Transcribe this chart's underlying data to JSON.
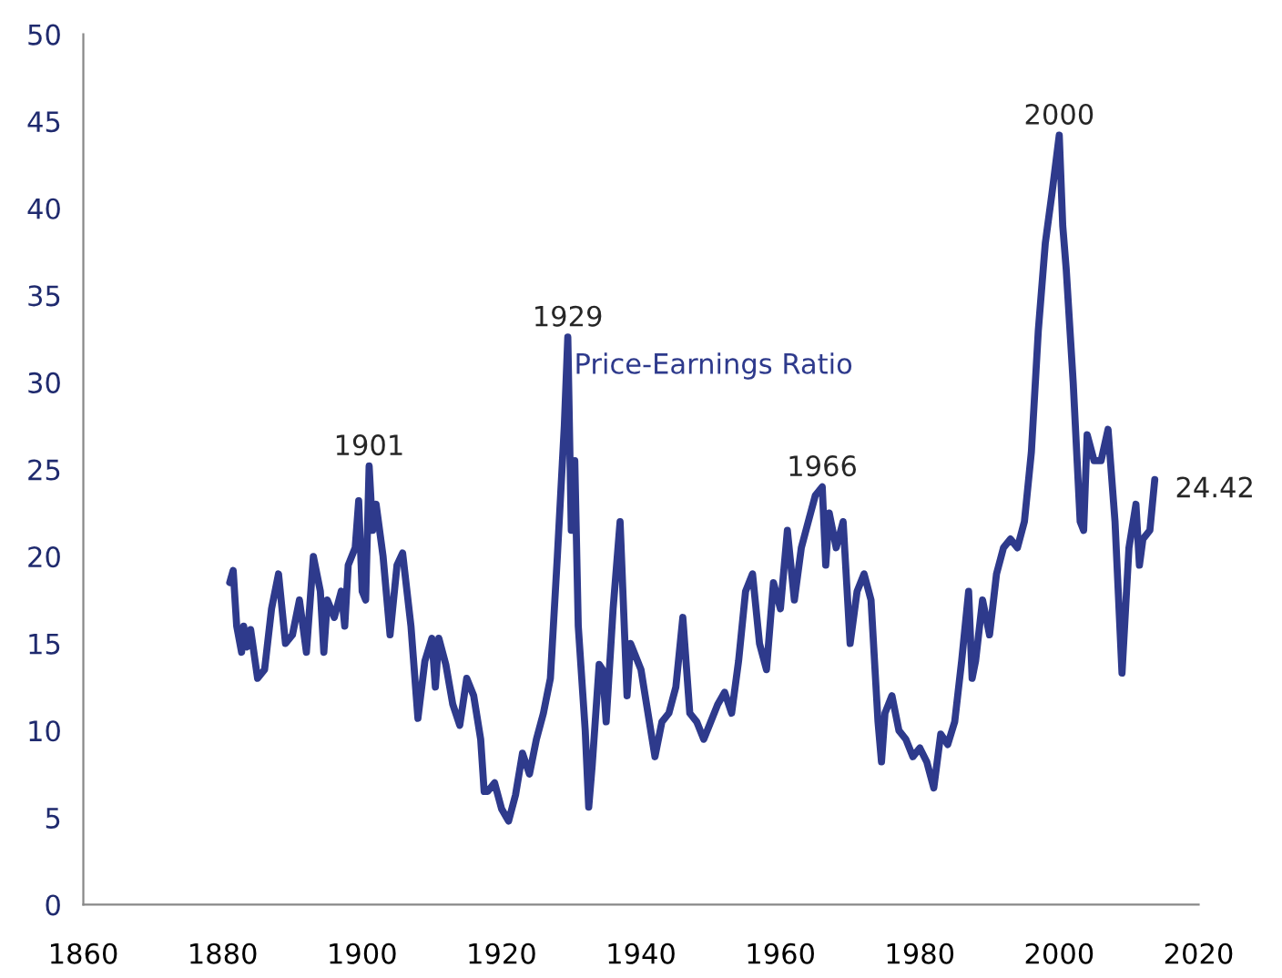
{
  "chart_data": {
    "type": "line",
    "xlim": [
      1860,
      2020
    ],
    "xticks": [
      1860,
      1880,
      1900,
      1920,
      1940,
      1960,
      1980,
      2000,
      2020
    ],
    "ylim": [
      0,
      50
    ],
    "yticks": [
      0,
      5,
      10,
      15,
      20,
      25,
      30,
      35,
      40,
      45,
      50
    ],
    "grid": false,
    "legend": false,
    "marker": "none",
    "line_style": "solid",
    "series": [
      {
        "name": "Price-Earnings Ratio",
        "color": "#2e3a8c",
        "x": [
          1881,
          1881.5,
          1882,
          1882.7,
          1883,
          1883.5,
          1884,
          1885,
          1886,
          1887,
          1888,
          1889,
          1890,
          1891,
          1892,
          1893,
          1894,
          1894.5,
          1895,
          1896,
          1897,
          1897.5,
          1898,
          1899,
          1899.5,
          1900,
          1900.5,
          1901,
          1901.5,
          1902,
          1903,
          1904,
          1905,
          1905.8,
          1907,
          1908,
          1909,
          1910,
          1910.5,
          1911,
          1912,
          1913,
          1914,
          1915,
          1916,
          1917,
          1917.5,
          1918,
          1919,
          1920,
          1921,
          1922,
          1923,
          1924,
          1925,
          1926,
          1927,
          1928,
          1929,
          1929.5,
          1930,
          1930.5,
          1931,
          1932,
          1932.5,
          1933,
          1934,
          1934.5,
          1935,
          1936,
          1937,
          1938,
          1938.5,
          1939,
          1940,
          1941,
          1942,
          1943,
          1944,
          1945,
          1946,
          1947,
          1948,
          1949,
          1950,
          1951,
          1952,
          1953,
          1954,
          1955,
          1956,
          1957,
          1958,
          1959,
          1960,
          1961,
          1962,
          1963,
          1964,
          1965,
          1966,
          1966.5,
          1967,
          1968,
          1969,
          1970,
          1971,
          1972,
          1973,
          1974,
          1974.5,
          1975,
          1976,
          1977,
          1978,
          1979,
          1980,
          1981,
          1982,
          1983,
          1984,
          1985,
          1986,
          1987,
          1987.5,
          1988,
          1989,
          1990,
          1991,
          1992,
          1993,
          1994,
          1995,
          1996,
          1997,
          1998,
          1999,
          2000,
          2000.5,
          2001,
          2002,
          2003,
          2003.5,
          2004,
          2005,
          2006,
          2007,
          2008,
          2009,
          2010,
          2011,
          2011.5,
          2012,
          2013,
          2013.7
        ],
        "values": [
          18.5,
          19.2,
          16,
          14.5,
          16,
          14.8,
          15.8,
          13,
          13.5,
          17,
          19,
          15,
          15.5,
          17.5,
          14.5,
          20,
          18,
          14.5,
          17.5,
          16.5,
          18,
          16,
          19.5,
          20.5,
          23.2,
          18,
          17.5,
          25.2,
          21.5,
          23,
          20,
          15.5,
          19.5,
          20.2,
          16,
          10.7,
          14,
          15.3,
          12.5,
          15.3,
          13.8,
          11.5,
          10.3,
          13,
          12,
          9.5,
          6.5,
          6.5,
          7,
          5.5,
          4.8,
          6.3,
          8.7,
          7.5,
          9.5,
          11,
          13,
          20,
          27.5,
          32.6,
          21.5,
          25.5,
          16,
          10,
          5.6,
          8,
          13.8,
          13.5,
          10.5,
          17,
          22,
          12,
          15,
          14.5,
          13.5,
          11,
          8.5,
          10.5,
          11,
          12.5,
          16.5,
          11,
          10.5,
          9.5,
          10.5,
          11.5,
          12.2,
          11,
          14,
          18,
          19,
          15,
          13.5,
          18.5,
          17,
          21.5,
          17.5,
          20.5,
          22,
          23.5,
          24,
          19.5,
          22.5,
          20.5,
          22,
          15,
          18,
          19,
          17.5,
          10.5,
          8.2,
          11,
          12,
          10,
          9.5,
          8.5,
          9,
          8.2,
          6.7,
          9.8,
          9.2,
          10.5,
          14,
          18,
          13,
          14,
          17.5,
          15.5,
          19,
          20.5,
          21,
          20.5,
          22,
          26,
          33,
          38,
          41,
          44.2,
          39,
          36.5,
          30,
          22,
          21.5,
          27,
          25.5,
          25.5,
          27.3,
          22,
          13.3,
          20.5,
          23,
          19.5,
          21,
          21.5,
          24.42
        ]
      }
    ],
    "annotations": [
      {
        "text": "1901",
        "x": 1901,
        "y": 25.2
      },
      {
        "text": "1929",
        "x": 1929.5,
        "y": 32.6
      },
      {
        "text": "1966",
        "x": 1966,
        "y": 24
      },
      {
        "text": "2000",
        "x": 2000,
        "y": 44.2
      },
      {
        "text": "24.42",
        "x": 2013.7,
        "y": 24.42
      }
    ]
  }
}
